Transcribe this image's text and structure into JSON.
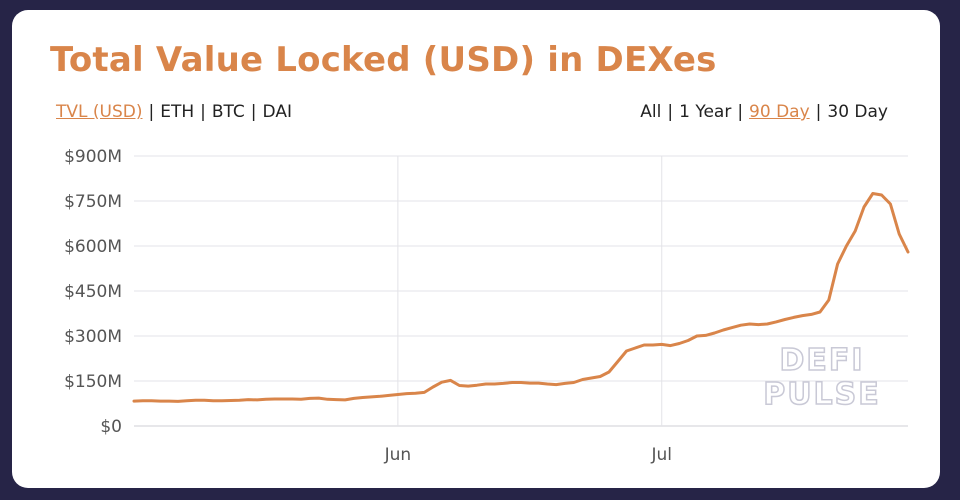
{
  "title": "Total Value Locked (USD) in DEXes",
  "metric_options": [
    {
      "label": "TVL (USD)",
      "active": true
    },
    {
      "label": "ETH",
      "active": false
    },
    {
      "label": "BTC",
      "active": false
    },
    {
      "label": "DAI",
      "active": false
    }
  ],
  "range_options": [
    {
      "label": "All",
      "active": false
    },
    {
      "label": "1 Year",
      "active": false
    },
    {
      "label": "90 Day",
      "active": true
    },
    {
      "label": "30 Day",
      "active": false
    }
  ],
  "watermark": [
    "DEFI",
    "PULSE"
  ],
  "colors": {
    "accent": "#d9854a",
    "line": "#d9854a",
    "grid": "#e3e3e8"
  },
  "chart_data": {
    "type": "line",
    "title": "Total Value Locked (USD) in DEXes",
    "xlabel": "",
    "ylabel": "",
    "ylim": [
      0,
      900
    ],
    "y_ticks": [
      0,
      150,
      300,
      450,
      600,
      750,
      900
    ],
    "y_tick_labels": [
      "$0",
      "$150M",
      "$300M",
      "$450M",
      "$600M",
      "$750M",
      "$900M"
    ],
    "x_ticks": [
      {
        "label": "Jun",
        "day": 30
      },
      {
        "label": "Jul",
        "day": 60
      }
    ],
    "xlim": [
      0,
      88
    ],
    "grid": true,
    "legend": "none",
    "series": [
      {
        "x": [
          0,
          1,
          2,
          3,
          4,
          5,
          6,
          7,
          8,
          9,
          10,
          11,
          12,
          13,
          14,
          15,
          16,
          17,
          18,
          19,
          20,
          21,
          22,
          23,
          24,
          25,
          26,
          27,
          28,
          29,
          30,
          31,
          32,
          33,
          34,
          35,
          36,
          37,
          38,
          39,
          40,
          41,
          42,
          43,
          44,
          45,
          46,
          47,
          48,
          49,
          50,
          51,
          52,
          53,
          54,
          55,
          56,
          57,
          58,
          59,
          60,
          61,
          62,
          63,
          64,
          65,
          66,
          67,
          68,
          69,
          70,
          71,
          72,
          73,
          74,
          75,
          76,
          77,
          78,
          79,
          80,
          81,
          82,
          83,
          84,
          85,
          86,
          87,
          88
        ],
        "y": [
          83,
          84,
          84,
          83,
          83,
          82,
          84,
          86,
          86,
          84,
          84,
          85,
          86,
          88,
          87,
          89,
          90,
          90,
          90,
          89,
          92,
          93,
          89,
          88,
          87,
          92,
          95,
          97,
          99,
          102,
          105,
          108,
          109,
          112,
          130,
          146,
          152,
          135,
          133,
          136,
          140,
          140,
          142,
          145,
          145,
          143,
          143,
          140,
          138,
          142,
          145,
          155,
          160,
          165,
          180,
          215,
          250,
          260,
          270,
          270,
          272,
          268,
          275,
          285,
          300,
          302,
          310,
          320,
          328,
          336,
          340,
          338,
          340,
          347,
          355,
          362,
          368,
          372,
          380,
          420,
          540,
          600,
          650,
          730,
          775,
          770,
          740,
          640,
          580
        ]
      }
    ]
  }
}
